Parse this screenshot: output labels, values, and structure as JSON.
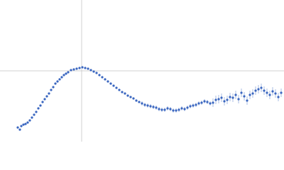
{
  "chart_data": {
    "type": "scatter",
    "color": "#3a66c0",
    "error_color": "#a8bde3",
    "xlim": [
      -1.15,
      2.85
    ],
    "ylim": [
      -1,
      1
    ],
    "reference_lines": {
      "x": 0,
      "y": 0
    },
    "x": [
      -0.9,
      -0.87,
      -0.85,
      -0.82,
      -0.79,
      -0.76,
      -0.73,
      -0.7,
      -0.67,
      -0.64,
      -0.61,
      -0.58,
      -0.55,
      -0.52,
      -0.49,
      -0.46,
      -0.43,
      -0.4,
      -0.37,
      -0.34,
      -0.31,
      -0.28,
      -0.25,
      -0.22,
      -0.19,
      -0.15,
      -0.11,
      -0.07,
      -0.03,
      0.01,
      0.05,
      0.09,
      0.13,
      0.17,
      0.21,
      0.25,
      0.29,
      0.33,
      0.37,
      0.41,
      0.45,
      0.49,
      0.53,
      0.57,
      0.61,
      0.65,
      0.69,
      0.73,
      0.77,
      0.81,
      0.85,
      0.89,
      0.93,
      0.97,
      1.01,
      1.05,
      1.09,
      1.13,
      1.17,
      1.21,
      1.25,
      1.29,
      1.33,
      1.37,
      1.41,
      1.45,
      1.49,
      1.53,
      1.57,
      1.61,
      1.65,
      1.69,
      1.73,
      1.77,
      1.81,
      1.85,
      1.89,
      1.93,
      1.97,
      2.01,
      2.05,
      2.09,
      2.13,
      2.17,
      2.21,
      2.25,
      2.29,
      2.33,
      2.37,
      2.41,
      2.45,
      2.49,
      2.53,
      2.57,
      2.61,
      2.65,
      2.69,
      2.73,
      2.77,
      2.81
    ],
    "values": [
      -0.8,
      -0.83,
      -0.78,
      -0.76,
      -0.75,
      -0.73,
      -0.7,
      -0.66,
      -0.62,
      -0.58,
      -0.53,
      -0.49,
      -0.44,
      -0.4,
      -0.36,
      -0.32,
      -0.27,
      -0.23,
      -0.18,
      -0.15,
      -0.12,
      -0.09,
      -0.06,
      -0.04,
      -0.02,
      0.01,
      0.02,
      0.03,
      0.04,
      0.05,
      0.04,
      0.03,
      0.01,
      -0.01,
      -0.03,
      -0.06,
      -0.09,
      -0.12,
      -0.15,
      -0.18,
      -0.21,
      -0.24,
      -0.27,
      -0.3,
      -0.32,
      -0.35,
      -0.37,
      -0.39,
      -0.42,
      -0.44,
      -0.46,
      -0.48,
      -0.49,
      -0.5,
      -0.51,
      -0.52,
      -0.54,
      -0.55,
      -0.55,
      -0.53,
      -0.54,
      -0.56,
      -0.56,
      -0.55,
      -0.53,
      -0.54,
      -0.52,
      -0.5,
      -0.49,
      -0.48,
      -0.46,
      -0.45,
      -0.43,
      -0.44,
      -0.46,
      -0.45,
      -0.41,
      -0.4,
      -0.38,
      -0.43,
      -0.41,
      -0.37,
      -0.38,
      -0.34,
      -0.4,
      -0.31,
      -0.36,
      -0.42,
      -0.34,
      -0.32,
      -0.28,
      -0.26,
      -0.24,
      -0.28,
      -0.31,
      -0.34,
      -0.29,
      -0.32,
      -0.37,
      -0.31
    ],
    "errors": [
      0.01,
      0.01,
      0.01,
      0.01,
      0.01,
      0.01,
      0.01,
      0.01,
      0.01,
      0.01,
      0.01,
      0.01,
      0.01,
      0.01,
      0.01,
      0.01,
      0.01,
      0.01,
      0.01,
      0.01,
      0.01,
      0.01,
      0.01,
      0.01,
      0.01,
      0.015,
      0.015,
      0.015,
      0.015,
      0.015,
      0.015,
      0.015,
      0.015,
      0.015,
      0.015,
      0.015,
      0.015,
      0.015,
      0.015,
      0.015,
      0.015,
      0.015,
      0.015,
      0.015,
      0.015,
      0.015,
      0.015,
      0.015,
      0.015,
      0.015,
      0.03,
      0.03,
      0.03,
      0.03,
      0.03,
      0.03,
      0.03,
      0.03,
      0.03,
      0.03,
      0.03,
      0.03,
      0.03,
      0.03,
      0.03,
      0.03,
      0.03,
      0.03,
      0.03,
      0.03,
      0.03,
      0.03,
      0.03,
      0.03,
      0.03,
      0.06,
      0.06,
      0.06,
      0.06,
      0.06,
      0.06,
      0.06,
      0.06,
      0.06,
      0.06,
      0.06,
      0.06,
      0.06,
      0.06,
      0.06,
      0.06,
      0.06,
      0.06,
      0.06,
      0.06,
      0.06,
      0.06,
      0.06,
      0.06,
      0.06
    ]
  }
}
